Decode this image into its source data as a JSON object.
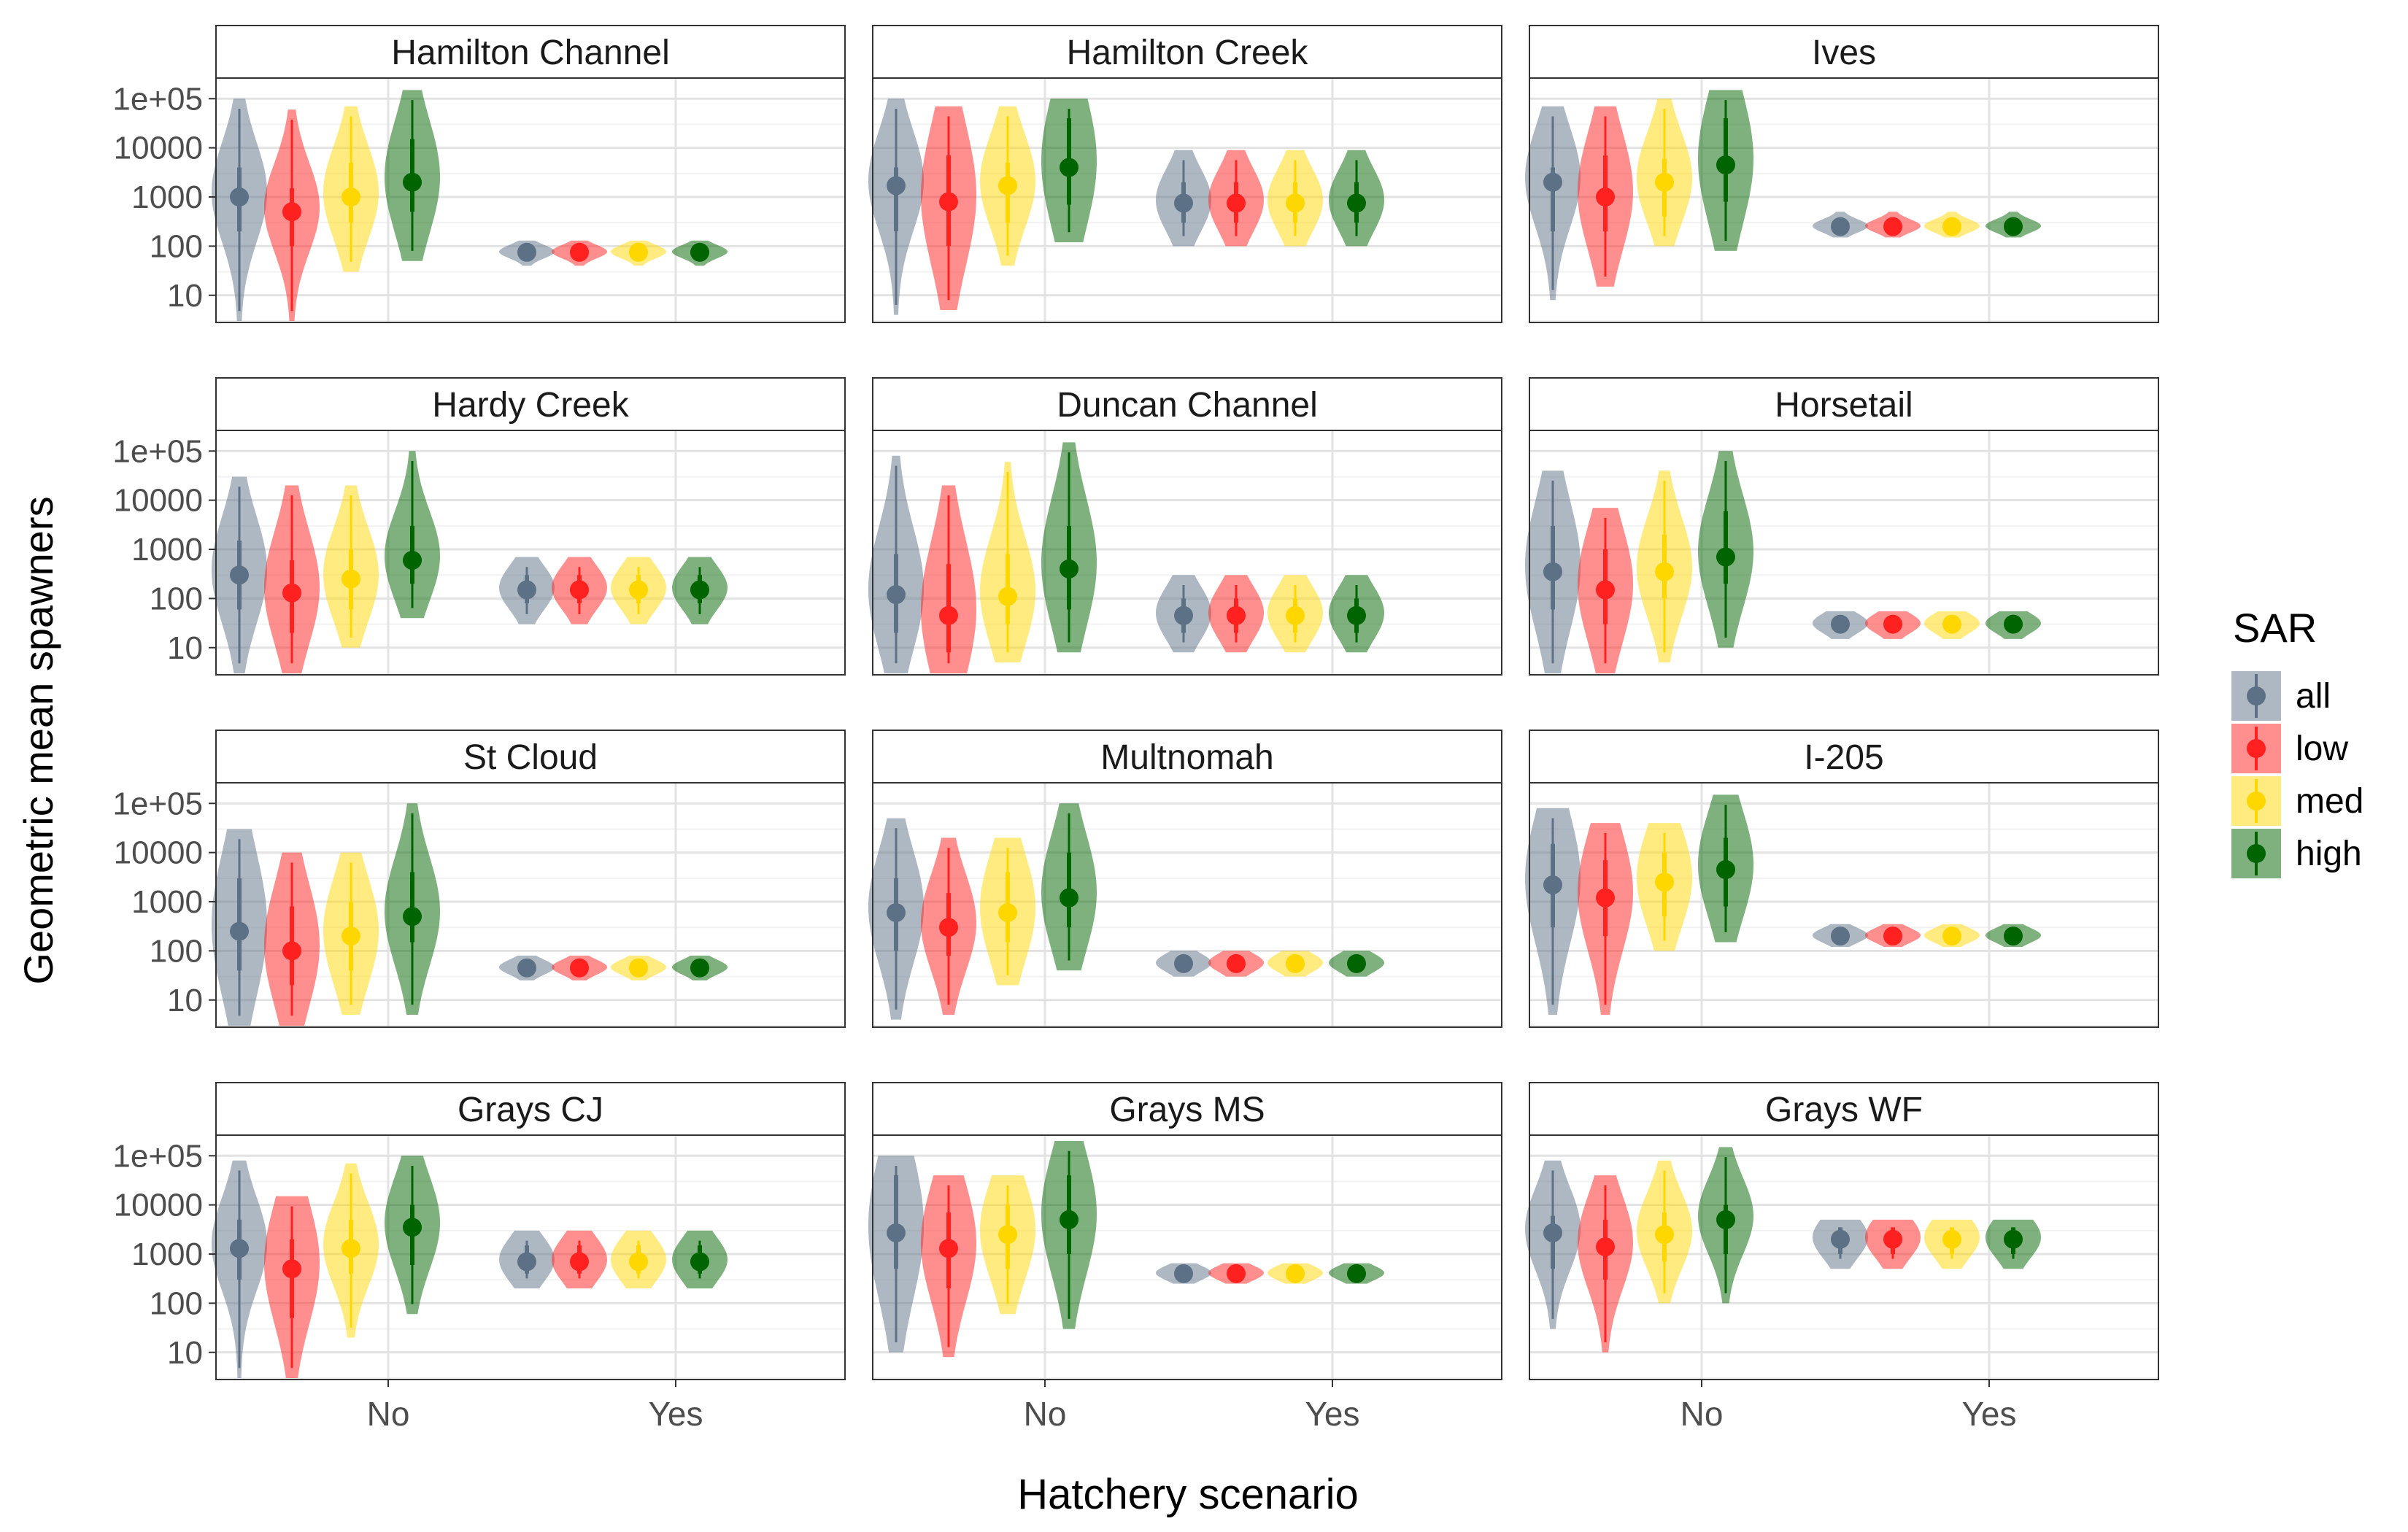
{
  "chart_data": {
    "type": "violin",
    "xlabel": "Hatchery scenario",
    "ylabel": "Geometric mean spawners",
    "x_categories": [
      "No",
      "Yes"
    ],
    "y_scale": "log10",
    "y_ticks": [
      10,
      100,
      1000,
      10000,
      100000
    ],
    "y_tick_labels": [
      "10",
      "100",
      "1000",
      "10000",
      "1e+05"
    ],
    "legend": {
      "title": "SAR",
      "placement": "right",
      "entries": [
        {
          "label": "all",
          "color": "#5d7186"
        },
        {
          "label": "low",
          "color": "#ff2020"
        },
        {
          "label": "med",
          "color": "#ffd700"
        },
        {
          "label": "high",
          "color": "#006400"
        }
      ]
    },
    "series_order": [
      "all",
      "low",
      "med",
      "high"
    ],
    "series_colors": {
      "all": "#5d7186",
      "low": "#ff2020",
      "med": "#ffd700",
      "high": "#006400"
    },
    "stat_fields": [
      "min",
      "q_lo",
      "median",
      "q_hi",
      "max"
    ],
    "panels": [
      {
        "title": "Hamilton Channel",
        "No": {
          "all": [
            3,
            200,
            1000,
            4000,
            100000
          ],
          "low": [
            3,
            100,
            500,
            1500,
            60000
          ],
          "med": [
            30,
            300,
            1000,
            5000,
            70000
          ],
          "high": [
            50,
            500,
            2000,
            15000,
            150000
          ]
        },
        "Yes": {
          "all": [
            40,
            60,
            75,
            90,
            130
          ],
          "low": [
            40,
            60,
            75,
            90,
            130
          ],
          "med": [
            40,
            60,
            75,
            90,
            130
          ],
          "high": [
            40,
            60,
            75,
            90,
            130
          ]
        }
      },
      {
        "title": "Hamilton Creek",
        "No": {
          "all": [
            4,
            200,
            1700,
            4000,
            100000
          ],
          "low": [
            5,
            100,
            800,
            7000,
            70000
          ],
          "med": [
            40,
            300,
            1700,
            5000,
            70000
          ],
          "high": [
            120,
            700,
            4000,
            40000,
            100000
          ]
        },
        "Yes": {
          "all": [
            100,
            300,
            750,
            2000,
            9000
          ],
          "low": [
            100,
            300,
            750,
            2000,
            9000
          ],
          "med": [
            100,
            300,
            750,
            2000,
            9000
          ],
          "high": [
            100,
            300,
            750,
            2000,
            9000
          ]
        }
      },
      {
        "title": "Ives",
        "No": {
          "all": [
            8,
            200,
            2000,
            4000,
            70000
          ],
          "low": [
            15,
            200,
            1000,
            7000,
            70000
          ],
          "med": [
            100,
            400,
            2000,
            6000,
            100000
          ],
          "high": [
            80,
            800,
            4500,
            40000,
            150000
          ]
        },
        "Yes": {
          "all": [
            150,
            200,
            250,
            300,
            500
          ],
          "low": [
            150,
            200,
            250,
            300,
            500
          ],
          "med": [
            150,
            200,
            250,
            300,
            500
          ],
          "high": [
            150,
            200,
            250,
            300,
            500
          ]
        }
      },
      {
        "title": "Hardy Creek",
        "No": {
          "all": [
            3,
            60,
            300,
            1500,
            30000
          ],
          "low": [
            3,
            20,
            130,
            600,
            20000
          ],
          "med": [
            10,
            60,
            250,
            1000,
            20000
          ],
          "high": [
            40,
            200,
            600,
            3000,
            100000
          ]
        },
        "Yes": {
          "all": [
            30,
            80,
            150,
            300,
            700
          ],
          "low": [
            30,
            80,
            150,
            300,
            700
          ],
          "med": [
            30,
            80,
            150,
            300,
            700
          ],
          "high": [
            30,
            80,
            150,
            300,
            700
          ]
        }
      },
      {
        "title": "Duncan Channel",
        "No": {
          "all": [
            3,
            20,
            120,
            800,
            80000
          ],
          "low": [
            3,
            8,
            45,
            500,
            20000
          ],
          "med": [
            5,
            30,
            110,
            800,
            60000
          ],
          "high": [
            8,
            60,
            400,
            3000,
            150000
          ]
        },
        "Yes": {
          "all": [
            8,
            20,
            45,
            100,
            300
          ],
          "low": [
            8,
            20,
            45,
            100,
            300
          ],
          "med": [
            8,
            20,
            45,
            100,
            300
          ],
          "high": [
            8,
            20,
            45,
            100,
            300
          ]
        }
      },
      {
        "title": "Horsetail",
        "No": {
          "all": [
            3,
            60,
            350,
            3000,
            40000
          ],
          "low": [
            3,
            30,
            150,
            1000,
            7000
          ],
          "med": [
            5,
            100,
            350,
            2000,
            40000
          ],
          "high": [
            10,
            200,
            700,
            6000,
            100000
          ]
        },
        "Yes": {
          "all": [
            15,
            22,
            30,
            40,
            55
          ],
          "low": [
            15,
            22,
            30,
            40,
            55
          ],
          "med": [
            15,
            22,
            30,
            40,
            55
          ],
          "high": [
            15,
            22,
            30,
            40,
            55
          ]
        }
      },
      {
        "title": "St Cloud",
        "No": {
          "all": [
            3,
            40,
            250,
            3000,
            30000
          ],
          "low": [
            3,
            20,
            100,
            800,
            10000
          ],
          "med": [
            5,
            40,
            200,
            1000,
            10000
          ],
          "high": [
            5,
            150,
            500,
            4000,
            100000
          ]
        },
        "Yes": {
          "all": [
            25,
            35,
            45,
            55,
            80
          ],
          "low": [
            25,
            35,
            45,
            55,
            80
          ],
          "med": [
            25,
            35,
            45,
            55,
            80
          ],
          "high": [
            25,
            35,
            45,
            55,
            80
          ]
        }
      },
      {
        "title": "Multnomah",
        "No": {
          "all": [
            4,
            100,
            600,
            3000,
            50000
          ],
          "low": [
            5,
            80,
            300,
            1500,
            20000
          ],
          "med": [
            20,
            150,
            600,
            4000,
            20000
          ],
          "high": [
            40,
            300,
            1200,
            10000,
            100000
          ]
        },
        "Yes": {
          "all": [
            30,
            40,
            55,
            70,
            100
          ],
          "low": [
            30,
            40,
            55,
            70,
            100
          ],
          "med": [
            30,
            40,
            55,
            70,
            100
          ],
          "high": [
            30,
            40,
            55,
            70,
            100
          ]
        }
      },
      {
        "title": "I-205",
        "No": {
          "all": [
            5,
            300,
            2200,
            15000,
            80000
          ],
          "low": [
            5,
            200,
            1200,
            7000,
            40000
          ],
          "med": [
            100,
            500,
            2500,
            10000,
            40000
          ],
          "high": [
            150,
            800,
            4500,
            20000,
            150000
          ]
        },
        "Yes": {
          "all": [
            120,
            160,
            200,
            250,
            350
          ],
          "low": [
            120,
            160,
            200,
            250,
            350
          ],
          "med": [
            120,
            160,
            200,
            250,
            350
          ],
          "high": [
            120,
            160,
            200,
            250,
            350
          ]
        }
      },
      {
        "title": "Grays CJ",
        "No": {
          "all": [
            3,
            300,
            1300,
            5000,
            80000
          ],
          "low": [
            3,
            50,
            500,
            2000,
            15000
          ],
          "med": [
            20,
            400,
            1300,
            5000,
            70000
          ],
          "high": [
            60,
            600,
            3500,
            10000,
            100000
          ]
        },
        "Yes": {
          "all": [
            200,
            400,
            700,
            1500,
            3000
          ],
          "low": [
            200,
            400,
            700,
            1500,
            3000
          ],
          "med": [
            200,
            400,
            700,
            1500,
            3000
          ],
          "high": [
            200,
            400,
            700,
            1500,
            3000
          ]
        }
      },
      {
        "title": "Grays MS",
        "No": {
          "all": [
            10,
            500,
            2700,
            40000,
            100000
          ],
          "low": [
            8,
            200,
            1300,
            7000,
            40000
          ],
          "med": [
            60,
            500,
            2500,
            10000,
            40000
          ],
          "high": [
            30,
            1000,
            5000,
            40000,
            200000
          ]
        },
        "Yes": {
          "all": [
            250,
            320,
            400,
            500,
            650
          ],
          "low": [
            250,
            320,
            400,
            500,
            650
          ],
          "med": [
            250,
            320,
            400,
            500,
            650
          ],
          "high": [
            250,
            320,
            400,
            500,
            650
          ]
        }
      },
      {
        "title": "Grays WF",
        "No": {
          "all": [
            30,
            500,
            2700,
            6000,
            80000
          ],
          "low": [
            10,
            300,
            1400,
            5000,
            40000
          ],
          "med": [
            100,
            700,
            2500,
            7000,
            80000
          ],
          "high": [
            100,
            1000,
            5000,
            10000,
            150000
          ]
        },
        "Yes": {
          "all": [
            500,
            1000,
            2000,
            3500,
            5000
          ],
          "low": [
            500,
            1000,
            2000,
            3500,
            5000
          ],
          "med": [
            500,
            1000,
            2000,
            3500,
            5000
          ],
          "high": [
            500,
            1000,
            2000,
            3500,
            5000
          ]
        }
      }
    ]
  }
}
